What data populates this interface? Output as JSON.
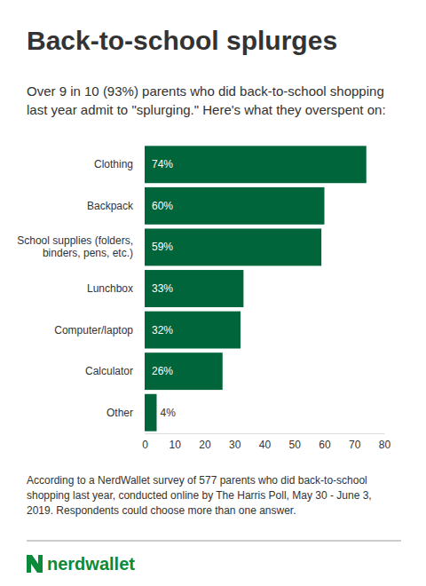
{
  "chart_data": {
    "type": "bar",
    "orientation": "horizontal",
    "title": "Back-to-school splurges",
    "subtitle": "Over 9 in 10 (93%) parents who did back-to-school shopping last year admit to \"splurging.\" Here's what they overspent on:",
    "categories": [
      "Clothing",
      "Backpack",
      "School supplies (folders, binders, pens, etc.)",
      "Lunchbox",
      "Computer/laptop",
      "Calculator",
      "Other"
    ],
    "values": [
      74,
      60,
      59,
      33,
      32,
      26,
      4
    ],
    "value_labels": [
      "74%",
      "60%",
      "59%",
      "33%",
      "32%",
      "26%",
      "4%"
    ],
    "data_labels": true,
    "color": "#00653a",
    "xlim": [
      0,
      80
    ],
    "xticks": [
      0,
      10,
      20,
      30,
      40,
      50,
      60,
      70,
      80
    ],
    "grid": false,
    "footnote": "According to a NerdWallet survey of 577 parents who did back-to-school shopping last year, conducted online by The Harris Poll, May 30 - June 3, 2019. Respondents could choose more than one answer.",
    "brand": "nerdwallet"
  }
}
